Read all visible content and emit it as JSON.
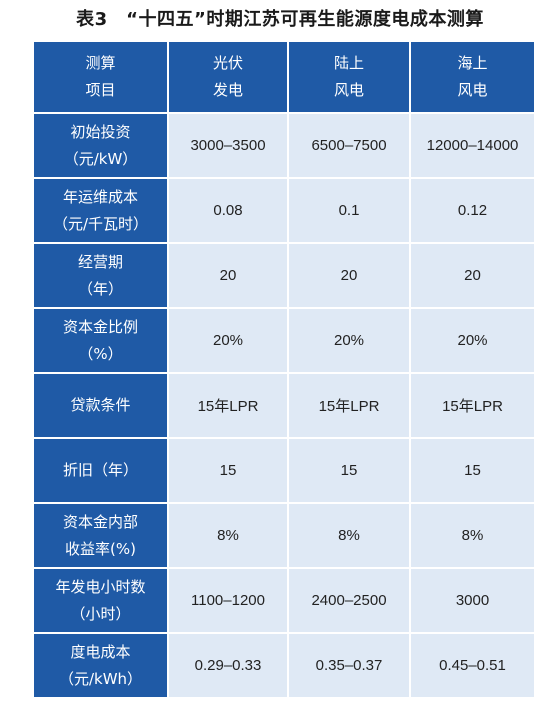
{
  "title": "表3　“十四五”时期江苏可再生能源度电成本测算",
  "header": {
    "corner": [
      "测算",
      "项目"
    ],
    "columns": [
      [
        "光伏",
        "发电"
      ],
      [
        "陆上",
        "风电"
      ],
      [
        "海上",
        "风电"
      ]
    ]
  },
  "rows": [
    {
      "label": [
        "初始投资",
        "（元/kW）"
      ],
      "values": [
        "3000–3500",
        "6500–7500",
        "12000–14000"
      ]
    },
    {
      "label": [
        "年运维成本",
        "（元/千瓦时）"
      ],
      "values": [
        "0.08",
        "0.1",
        "0.12"
      ]
    },
    {
      "label": [
        "经营期",
        "（年）"
      ],
      "values": [
        "20",
        "20",
        "20"
      ]
    },
    {
      "label": [
        "资本金比例",
        "（%）"
      ],
      "values": [
        "20%",
        "20%",
        "20%"
      ]
    },
    {
      "label": [
        "贷款条件"
      ],
      "values": [
        "15年LPR",
        "15年LPR",
        "15年LPR"
      ]
    },
    {
      "label": [
        "折旧（年）"
      ],
      "values": [
        "15",
        "15",
        "15"
      ]
    },
    {
      "label": [
        "资本金内部",
        "收益率(%)"
      ],
      "values": [
        "8%",
        "8%",
        "8%"
      ]
    },
    {
      "label": [
        "年发电小时数",
        "（小时）"
      ],
      "values": [
        "1100–1200",
        "2400–2500",
        "3000"
      ]
    },
    {
      "label": [
        "度电成本",
        "（元/kWh）"
      ],
      "values": [
        "0.29–0.33",
        "0.35–0.37",
        "0.45–0.51"
      ]
    }
  ],
  "colors": {
    "header_bg": "#1f5aa6",
    "cell_bg": "#dfe9f5"
  }
}
